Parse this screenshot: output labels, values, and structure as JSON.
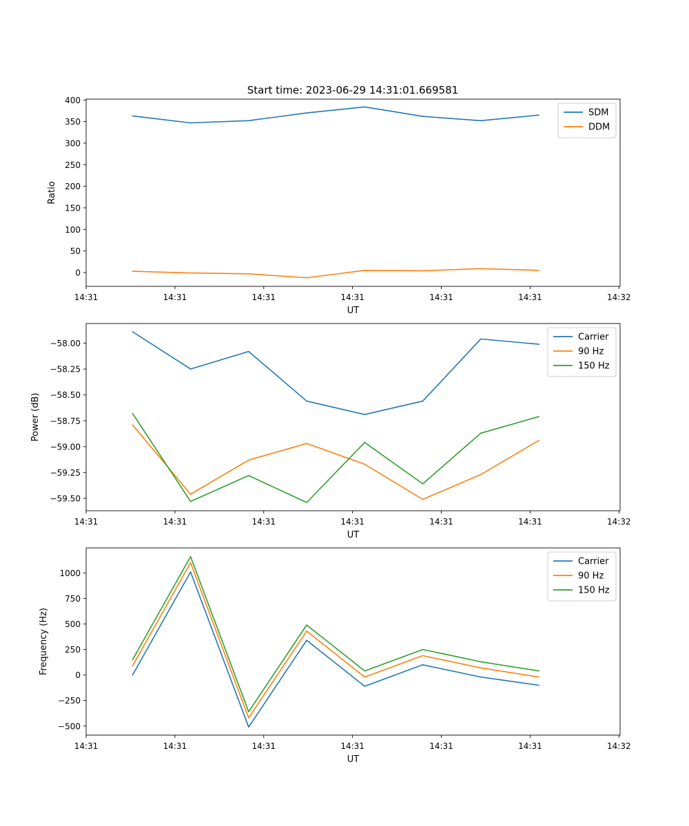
{
  "figure": {
    "title": "Start time: 2023-06-29 14:31:01.669581"
  },
  "chart_data": [
    {
      "type": "line",
      "xlabel": "UT",
      "ylabel": "Ratio",
      "x": [
        1,
        2,
        3,
        4,
        5,
        6,
        7,
        8
      ],
      "xlim": [
        0.2,
        9.4
      ],
      "x_ticks": [
        {
          "x": 0.2,
          "label": "14:31"
        },
        {
          "x": 1.73,
          "label": "14:31"
        },
        {
          "x": 3.26,
          "label": "14:31"
        },
        {
          "x": 4.79,
          "label": "14:31"
        },
        {
          "x": 6.32,
          "label": "14:31"
        },
        {
          "x": 7.85,
          "label": "14:31"
        },
        {
          "x": 9.38,
          "label": "14:32"
        }
      ],
      "ylim": [
        -32,
        402
      ],
      "y_ticks": [
        {
          "y": 0,
          "label": "0"
        },
        {
          "y": 50,
          "label": "50"
        },
        {
          "y": 100,
          "label": "100"
        },
        {
          "y": 150,
          "label": "150"
        },
        {
          "y": 200,
          "label": "200"
        },
        {
          "y": 250,
          "label": "250"
        },
        {
          "y": 300,
          "label": "300"
        },
        {
          "y": 350,
          "label": "350"
        },
        {
          "y": 400,
          "label": "400"
        }
      ],
      "legend_position": "top-right",
      "series": [
        {
          "name": "SDM",
          "color": "#1f77b4",
          "values": [
            363,
            347,
            352,
            370,
            384,
            362,
            352,
            365
          ]
        },
        {
          "name": "DDM",
          "color": "#ff7f0e",
          "values": [
            3,
            -1,
            -3,
            -12,
            5,
            4,
            9,
            5
          ]
        }
      ]
    },
    {
      "type": "line",
      "xlabel": "UT",
      "ylabel": "Power (dB)",
      "x": [
        1,
        2,
        3,
        4,
        5,
        6,
        7,
        8
      ],
      "xlim": [
        0.2,
        9.4
      ],
      "x_ticks": [
        {
          "x": 0.2,
          "label": "14:31"
        },
        {
          "x": 1.73,
          "label": "14:31"
        },
        {
          "x": 3.26,
          "label": "14:31"
        },
        {
          "x": 4.79,
          "label": "14:31"
        },
        {
          "x": 6.32,
          "label": "14:31"
        },
        {
          "x": 7.85,
          "label": "14:31"
        },
        {
          "x": 9.38,
          "label": "14:32"
        }
      ],
      "ylim": [
        -59.62,
        -57.81
      ],
      "y_ticks": [
        {
          "y": -59.5,
          "label": "−59.50"
        },
        {
          "y": -59.25,
          "label": "−59.25"
        },
        {
          "y": -59.0,
          "label": "−59.00"
        },
        {
          "y": -58.75,
          "label": "−58.75"
        },
        {
          "y": -58.5,
          "label": "−58.50"
        },
        {
          "y": -58.25,
          "label": "−58.25"
        },
        {
          "y": -58.0,
          "label": "−58.00"
        }
      ],
      "legend_position": "top-right",
      "series": [
        {
          "name": "Carrier",
          "color": "#1f77b4",
          "values": [
            -57.89,
            -58.25,
            -58.08,
            -58.56,
            -58.69,
            -58.56,
            -57.96,
            -58.01
          ]
        },
        {
          "name": "90 Hz",
          "color": "#ff7f0e",
          "values": [
            -58.79,
            -59.46,
            -59.13,
            -58.97,
            -59.17,
            -59.51,
            -59.27,
            -58.94
          ]
        },
        {
          "name": "150 Hz",
          "color": "#2ca02c",
          "values": [
            -58.68,
            -59.53,
            -59.28,
            -59.54,
            -58.96,
            -59.36,
            -58.87,
            -58.71
          ]
        }
      ]
    },
    {
      "type": "line",
      "xlabel": "UT",
      "ylabel": "Frequency (Hz)",
      "x": [
        1,
        2,
        3,
        4,
        5,
        6,
        7,
        8
      ],
      "xlim": [
        0.2,
        9.4
      ],
      "x_ticks": [
        {
          "x": 0.2,
          "label": "14:31"
        },
        {
          "x": 1.73,
          "label": "14:31"
        },
        {
          "x": 3.26,
          "label": "14:31"
        },
        {
          "x": 4.79,
          "label": "14:31"
        },
        {
          "x": 6.32,
          "label": "14:31"
        },
        {
          "x": 7.85,
          "label": "14:31"
        },
        {
          "x": 9.38,
          "label": "14:32"
        }
      ],
      "ylim": [
        -589,
        1245
      ],
      "y_ticks": [
        {
          "y": -500,
          "label": "−500"
        },
        {
          "y": -250,
          "label": "−250"
        },
        {
          "y": 0,
          "label": "0"
        },
        {
          "y": 250,
          "label": "250"
        },
        {
          "y": 500,
          "label": "500"
        },
        {
          "y": 750,
          "label": "750"
        },
        {
          "y": 1000,
          "label": "1000"
        }
      ],
      "legend_position": "top-right",
      "series": [
        {
          "name": "Carrier",
          "color": "#1f77b4",
          "values": [
            0,
            1010,
            -510,
            340,
            -110,
            100,
            -20,
            -100
          ]
        },
        {
          "name": "90 Hz",
          "color": "#ff7f0e",
          "values": [
            90,
            1100,
            -420,
            430,
            -20,
            190,
            70,
            -20
          ]
        },
        {
          "name": "150 Hz",
          "color": "#2ca02c",
          "values": [
            150,
            1160,
            -360,
            490,
            40,
            250,
            130,
            40
          ]
        }
      ]
    }
  ]
}
